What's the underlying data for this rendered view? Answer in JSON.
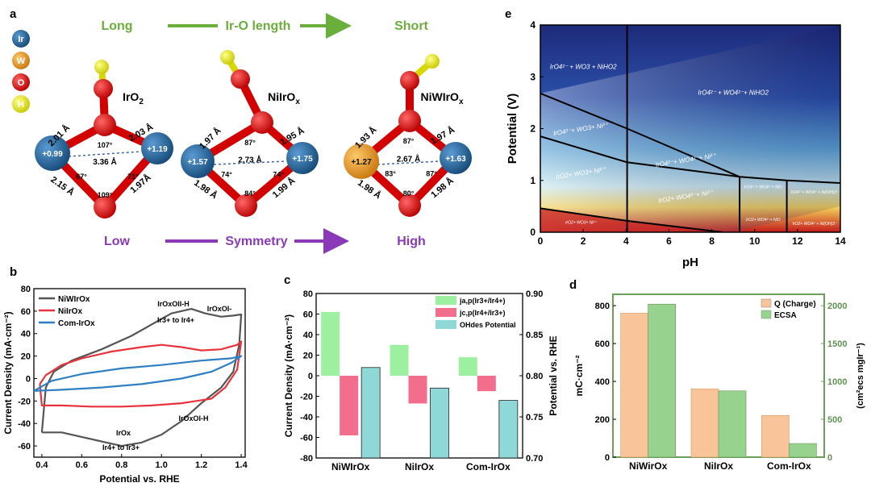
{
  "panel_a": {
    "letter": "a",
    "legend": [
      {
        "label": "Ir",
        "color": "#1f5f96"
      },
      {
        "label": "W",
        "color": "#f08a3c"
      },
      {
        "label": "O",
        "color": "#e01010"
      },
      {
        "label": "H",
        "color": "#e6e600"
      }
    ],
    "top_row": {
      "left": "Long",
      "center": "Ir-O length",
      "right": "Short",
      "color": "#6aae3c"
    },
    "bottom_row": {
      "left": "Low",
      "center": "Symmetry",
      "right": "High",
      "color": "#8a3ab9"
    },
    "structures": [
      {
        "name": "IrO",
        "name_sub": "2",
        "bonds": [
          "2.01 Å",
          "2.03 Å",
          "2.15 Å",
          "1.97Å"
        ],
        "angles": [
          "107°",
          "67°",
          "109°",
          "71°"
        ],
        "distance": "3.36 Å",
        "charges": [
          "+0.99",
          "+1.19"
        ]
      },
      {
        "name": "NiIrO",
        "name_sub": "x",
        "bonds": [
          "1.97 Å",
          "1.95 Å",
          "1.98 Å",
          "1.99 Å"
        ],
        "angles": [
          "87°",
          "74°",
          "84°",
          "74°"
        ],
        "distance": "2.73 Å",
        "charges": [
          "+1.57",
          "+1.75"
        ]
      },
      {
        "name": "NiWIrO",
        "name_sub": "x",
        "bonds": [
          "1.93 Å",
          "1.97 Å",
          "1.98 Å",
          "1.98 Å"
        ],
        "angles": [
          "87°",
          "83°",
          "80°",
          "87°"
        ],
        "distance": "2.67 Å",
        "charges": [
          "+1.27",
          "+1.63"
        ]
      }
    ]
  },
  "chart_data": [
    {
      "panel": "b",
      "type": "line",
      "xlabel": "Potential vs. RHE",
      "ylabel": "Current Density (mA·cm⁻²)",
      "xlim": [
        0.36,
        1.42
      ],
      "ylim": [
        -70,
        80
      ],
      "xticks": [
        "0.4",
        "0.6",
        "0.8",
        "1.0",
        "1.2",
        "1.4"
      ],
      "yticks": [
        "-60",
        "-40",
        "-20",
        "0",
        "20",
        "40",
        "60",
        "80"
      ],
      "legend_position": "top-left",
      "annotations": [
        "IrOxOII-H",
        "IrOxOI-",
        "Ir3+ to Ir4+",
        "IrOx",
        "Ir4+ to Ir3+",
        "IrOxOI-H"
      ],
      "series": [
        {
          "name": "NiWIrOx",
          "color": "#555555",
          "anodic": [
            [
              0.4,
              -48
            ],
            [
              0.42,
              -8
            ],
            [
              0.46,
              6
            ],
            [
              0.55,
              16
            ],
            [
              0.7,
              26
            ],
            [
              0.85,
              38
            ],
            [
              0.95,
              48
            ],
            [
              1.05,
              58
            ],
            [
              1.15,
              62
            ],
            [
              1.22,
              58
            ],
            [
              1.3,
              55
            ],
            [
              1.36,
              56
            ],
            [
              1.4,
              57
            ]
          ],
          "cathodic": [
            [
              1.4,
              57
            ],
            [
              1.39,
              30
            ],
            [
              1.36,
              6
            ],
            [
              1.3,
              -8
            ],
            [
              1.2,
              -22
            ],
            [
              1.1,
              -38
            ],
            [
              1.0,
              -50
            ],
            [
              0.9,
              -57
            ],
            [
              0.8,
              -60
            ],
            [
              0.7,
              -56
            ],
            [
              0.6,
              -52
            ],
            [
              0.5,
              -48
            ],
            [
              0.4,
              -48
            ]
          ]
        },
        {
          "name": "NiIrOx",
          "color": "#e8333c",
          "anodic": [
            [
              0.39,
              -5
            ],
            [
              0.42,
              3
            ],
            [
              0.5,
              12
            ],
            [
              0.6,
              18
            ],
            [
              0.75,
              24
            ],
            [
              0.9,
              28
            ],
            [
              1.0,
              30
            ],
            [
              1.1,
              28
            ],
            [
              1.2,
              25
            ],
            [
              1.3,
              26
            ],
            [
              1.38,
              30
            ],
            [
              1.4,
              33
            ]
          ],
          "cathodic": [
            [
              1.4,
              33
            ],
            [
              1.38,
              8
            ],
            [
              1.32,
              -8
            ],
            [
              1.25,
              -18
            ],
            [
              1.1,
              -22
            ],
            [
              0.95,
              -24
            ],
            [
              0.8,
              -25
            ],
            [
              0.65,
              -25
            ],
            [
              0.5,
              -24
            ],
            [
              0.4,
              -24
            ],
            [
              0.39,
              -5
            ]
          ]
        },
        {
          "name": "Com-IrOx",
          "color": "#2f7fc4",
          "anodic": [
            [
              0.36,
              -11
            ],
            [
              0.45,
              -2
            ],
            [
              0.6,
              4
            ],
            [
              0.8,
              9
            ],
            [
              1.0,
              12
            ],
            [
              1.2,
              16
            ],
            [
              1.35,
              18
            ],
            [
              1.4,
              20
            ]
          ],
          "cathodic": [
            [
              1.4,
              20
            ],
            [
              1.35,
              14
            ],
            [
              1.25,
              6
            ],
            [
              1.1,
              0
            ],
            [
              0.9,
              -5
            ],
            [
              0.7,
              -8
            ],
            [
              0.5,
              -10
            ],
            [
              0.36,
              -11
            ]
          ]
        }
      ]
    },
    {
      "panel": "c",
      "type": "bar",
      "categories": [
        "NiWIrOx",
        "NiIrOx",
        "Com-IrOx"
      ],
      "ylabel": "Current Density (mA·cm⁻²)",
      "y2label": "Potential vs. RHE",
      "ylim": [
        -80,
        80
      ],
      "y2lim": [
        0.7,
        0.9
      ],
      "yticks": [
        "-80",
        "-60",
        "-40",
        "-20",
        "0",
        "20",
        "40",
        "60",
        "80"
      ],
      "y2ticks": [
        "0.70",
        "0.75",
        "0.80",
        "0.85",
        "0.90"
      ],
      "legend_position": "top-right",
      "series": [
        {
          "name": "ja,p(Ir3+/Ir4+)",
          "color": "#9df0a0",
          "values": [
            62,
            30,
            18
          ],
          "axis": "left"
        },
        {
          "name": "jc,p(Ir4+/Ir3+)",
          "color": "#f26e8c",
          "values": [
            -58,
            -27,
            -15
          ],
          "axis": "left"
        },
        {
          "name": "OHdes Potential",
          "color": "#8fd8d8",
          "values": [
            0.81,
            0.785,
            0.77
          ],
          "axis": "right"
        }
      ]
    },
    {
      "panel": "d",
      "type": "bar",
      "categories": [
        "NiWirOx",
        "NiIrOx",
        "Com-IrOx"
      ],
      "ylabel": "mC·cm⁻²",
      "y2label": "(cm²ecs mgIr⁻¹)",
      "ylim": [
        0,
        860
      ],
      "y2lim": [
        0,
        2150
      ],
      "yticks": [
        "0",
        "200",
        "400",
        "600",
        "800"
      ],
      "y2ticks": [
        "0",
        "500",
        "1000",
        "1500",
        "2000"
      ],
      "legend_position": "top-right",
      "series": [
        {
          "name": "Q (Charge)",
          "color": "#f9c49a",
          "values": [
            760,
            360,
            220
          ],
          "axis": "left"
        },
        {
          "name": "ECSA",
          "color": "#97d38f",
          "values": [
            2020,
            875,
            180
          ],
          "axis": "right"
        }
      ]
    },
    {
      "panel": "e",
      "type": "heatmap",
      "xlabel": "pH",
      "ylabel": "Potential (V)",
      "xlim": [
        0,
        14
      ],
      "ylim": [
        0,
        4
      ],
      "xticks": [
        "0",
        "2",
        "4",
        "6",
        "8",
        "10",
        "12",
        "14"
      ],
      "yticks": [
        "0",
        "1",
        "2",
        "3",
        "4"
      ],
      "regions": [
        {
          "label": "IrO4²⁻ + WO3 + NiHO2",
          "x": 2.0,
          "y": 3.15,
          "size": 8
        },
        {
          "label": "IrO4²⁻ + WO4²⁻+ NiHO2",
          "x": 9.0,
          "y": 2.65,
          "size": 8
        },
        {
          "label": "IrO4²⁻+ WO3+ Ni²⁺",
          "x": 1.9,
          "y": 1.95,
          "size": 8,
          "rotate": -9
        },
        {
          "label": "IrO4²⁻+ WO4²⁻+ Ni²⁺",
          "x": 6.8,
          "y": 1.35,
          "size": 8,
          "rotate": -9
        },
        {
          "label": "IrO2+ WO3+ Ni²⁺",
          "x": 1.9,
          "y": 1.1,
          "size": 8,
          "rotate": -9
        },
        {
          "label": "IrO2+ WO4²⁻+ Ni²⁺",
          "x": 6.8,
          "y": 0.65,
          "size": 8,
          "rotate": -9
        },
        {
          "label": "IrO4²⁻+ WO4²⁻+ NiO",
          "x": 10.4,
          "y": 0.85,
          "size": 5
        },
        {
          "label": "IrO4²⁻+ WO4²⁻+ Ni(OH)3⁻",
          "x": 12.8,
          "y": 0.75,
          "size": 5
        },
        {
          "label": "IrO2+ WO4²⁻+ NiO",
          "x": 10.4,
          "y": 0.22,
          "size": 5
        },
        {
          "label": "IrO2+ WO4²⁻+ Ni(OH)3⁻",
          "x": 12.8,
          "y": 0.14,
          "size": 5
        },
        {
          "label": "IrO2+ WO3+ Ni²⁺",
          "x": 1.9,
          "y": 0.16,
          "size": 5
        }
      ],
      "boundaries": [
        [
          [
            0,
            2.68
          ],
          [
            4.05,
            2.0
          ],
          [
            9.3,
            1.07
          ],
          [
            11.5,
            1.0
          ],
          [
            14,
            0.95
          ]
        ],
        [
          [
            0,
            1.85
          ],
          [
            4.05,
            1.35
          ],
          [
            9.3,
            1.07
          ]
        ],
        [
          [
            0,
            0.46
          ],
          [
            4.05,
            0.22
          ],
          [
            8.5,
            0
          ]
        ],
        [
          [
            4.05,
            0
          ],
          [
            4.05,
            4
          ]
        ],
        [
          [
            9.3,
            1.07
          ],
          [
            9.3,
            0
          ]
        ],
        [
          [
            11.5,
            1.0
          ],
          [
            11.5,
            0
          ]
        ]
      ]
    }
  ],
  "panel_b": {
    "letter": "b"
  },
  "panel_c": {
    "letter": "c"
  },
  "panel_d": {
    "letter": "d"
  },
  "panel_e": {
    "letter": "e"
  }
}
